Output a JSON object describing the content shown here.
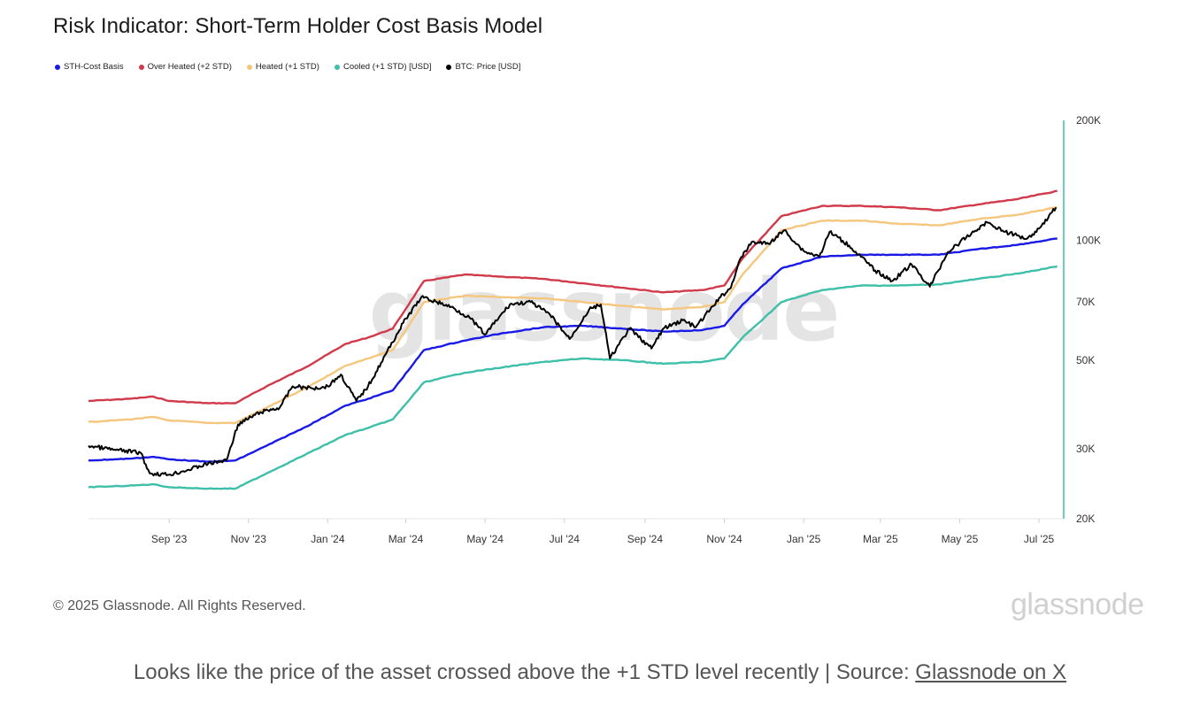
{
  "chart_data": {
    "type": "line",
    "title": "Risk Indicator: Short-Term Holder Cost Basis Model",
    "y_scale": "log",
    "ylim": [
      20000,
      200000
    ],
    "y_ticks": [
      {
        "value": 200000,
        "label": "200K"
      },
      {
        "value": 100000,
        "label": "100K"
      },
      {
        "value": 70000,
        "label": "70K"
      },
      {
        "value": 50000,
        "label": "50K"
      },
      {
        "value": 30000,
        "label": "30K"
      },
      {
        "value": 20000,
        "label": "20K"
      }
    ],
    "xlim": [
      "2023-07-01",
      "2025-07-20"
    ],
    "x_ticks": [
      {
        "date": "2023-09-01",
        "label": "Sep '23"
      },
      {
        "date": "2023-11-01",
        "label": "Nov '23"
      },
      {
        "date": "2024-01-01",
        "label": "Jan '24"
      },
      {
        "date": "2024-03-01",
        "label": "Mar '24"
      },
      {
        "date": "2024-05-01",
        "label": "May '24"
      },
      {
        "date": "2024-07-01",
        "label": "Jul '24"
      },
      {
        "date": "2024-09-01",
        "label": "Sep '24"
      },
      {
        "date": "2024-11-01",
        "label": "Nov '24"
      },
      {
        "date": "2025-01-01",
        "label": "Jan '25"
      },
      {
        "date": "2025-03-01",
        "label": "Mar '25"
      },
      {
        "date": "2025-05-01",
        "label": "May '25"
      },
      {
        "date": "2025-07-01",
        "label": "Jul '25"
      }
    ],
    "grid": false,
    "legend_position": "top-left",
    "watermark": "glassnode",
    "series": [
      {
        "name": "Over Heated (+2 STD)",
        "color": "#d03a4a",
        "x": [
          "2023-07-01",
          "2023-08-01",
          "2023-08-20",
          "2023-09-01",
          "2023-10-01",
          "2023-10-22",
          "2023-11-15",
          "2023-12-15",
          "2024-01-15",
          "2024-02-01",
          "2024-02-20",
          "2024-03-15",
          "2024-04-15",
          "2024-05-15",
          "2024-06-15",
          "2024-07-15",
          "2024-08-15",
          "2024-09-15",
          "2024-10-15",
          "2024-11-01",
          "2024-11-15",
          "2024-12-15",
          "2025-01-15",
          "2025-02-15",
          "2025-03-15",
          "2025-04-15",
          "2025-05-15",
          "2025-06-15",
          "2025-07-15"
        ],
        "y": [
          39500,
          40000,
          40500,
          39500,
          39000,
          39000,
          43000,
          48000,
          55000,
          57000,
          60000,
          79000,
          82000,
          81000,
          80000,
          78000,
          76000,
          74000,
          75000,
          77000,
          90000,
          115000,
          122000,
          122000,
          121000,
          119000,
          123000,
          127000,
          133000
        ]
      },
      {
        "name": "Heated (+1 STD)",
        "color": "#f5c77e",
        "x": [
          "2023-07-01",
          "2023-08-01",
          "2023-08-20",
          "2023-09-01",
          "2023-10-01",
          "2023-10-22",
          "2023-11-15",
          "2023-12-15",
          "2024-01-15",
          "2024-02-01",
          "2024-02-20",
          "2024-03-15",
          "2024-04-15",
          "2024-05-15",
          "2024-06-15",
          "2024-07-15",
          "2024-08-15",
          "2024-09-15",
          "2024-10-15",
          "2024-11-01",
          "2024-11-15",
          "2024-12-15",
          "2025-01-15",
          "2025-02-15",
          "2025-03-15",
          "2025-04-15",
          "2025-05-15",
          "2025-06-15",
          "2025-07-15"
        ],
        "y": [
          35000,
          35500,
          36000,
          35300,
          34800,
          34800,
          38000,
          42500,
          48500,
          50500,
          53000,
          70000,
          72500,
          72000,
          71500,
          70000,
          68500,
          67000,
          68000,
          70000,
          82000,
          106000,
          112000,
          112000,
          110000,
          109000,
          113000,
          116000,
          121000
        ]
      },
      {
        "name": "STH-Cost Basis",
        "color": "#1a1ae6",
        "x": [
          "2023-07-01",
          "2023-08-01",
          "2023-08-20",
          "2023-09-01",
          "2023-10-01",
          "2023-10-22",
          "2023-11-15",
          "2023-12-15",
          "2024-01-15",
          "2024-02-01",
          "2024-02-20",
          "2024-03-15",
          "2024-04-15",
          "2024-05-15",
          "2024-06-15",
          "2024-07-15",
          "2024-08-15",
          "2024-09-15",
          "2024-10-15",
          "2024-11-01",
          "2024-11-15",
          "2024-12-15",
          "2025-01-15",
          "2025-02-15",
          "2025-03-15",
          "2025-04-15",
          "2025-05-15",
          "2025-06-15",
          "2025-07-15"
        ],
        "y": [
          28000,
          28300,
          28600,
          28200,
          27800,
          28000,
          30500,
          34000,
          38500,
          40000,
          42000,
          53000,
          56000,
          58500,
          60500,
          61000,
          60000,
          59000,
          59500,
          61000,
          69000,
          85000,
          91000,
          92000,
          92000,
          92000,
          95000,
          97500,
          101000
        ]
      },
      {
        "name": "Cooled (+1 STD) [USD]",
        "color": "#3dbfa9",
        "x": [
          "2023-07-01",
          "2023-08-01",
          "2023-08-20",
          "2023-09-01",
          "2023-10-01",
          "2023-10-22",
          "2023-11-15",
          "2023-12-15",
          "2024-01-15",
          "2024-02-01",
          "2024-02-20",
          "2024-03-15",
          "2024-04-15",
          "2024-05-15",
          "2024-06-15",
          "2024-07-15",
          "2024-08-15",
          "2024-09-15",
          "2024-10-15",
          "2024-11-01",
          "2024-11-15",
          "2024-12-15",
          "2025-01-15",
          "2025-02-15",
          "2025-03-15",
          "2025-04-15",
          "2025-05-15",
          "2025-06-15",
          "2025-07-15"
        ],
        "y": [
          24000,
          24200,
          24400,
          24000,
          23800,
          23800,
          26000,
          29000,
          32500,
          33800,
          35500,
          44000,
          46500,
          48000,
          49500,
          50500,
          50000,
          49000,
          49500,
          50500,
          57000,
          70000,
          75000,
          77000,
          77000,
          77500,
          80000,
          82500,
          86000
        ]
      },
      {
        "name": "BTC: Price [USD]",
        "color": "#000000",
        "x": [
          "2023-07-01",
          "2023-07-20",
          "2023-08-10",
          "2023-08-17",
          "2023-09-01",
          "2023-09-15",
          "2023-10-01",
          "2023-10-15",
          "2023-10-24",
          "2023-11-10",
          "2023-11-25",
          "2023-12-05",
          "2023-12-20",
          "2024-01-01",
          "2024-01-11",
          "2024-01-23",
          "2024-02-01",
          "2024-02-15",
          "2024-02-28",
          "2024-03-13",
          "2024-03-25",
          "2024-04-05",
          "2024-04-19",
          "2024-05-01",
          "2024-05-20",
          "2024-06-05",
          "2024-06-20",
          "2024-07-05",
          "2024-07-20",
          "2024-07-29",
          "2024-08-05",
          "2024-08-20",
          "2024-09-06",
          "2024-09-15",
          "2024-09-30",
          "2024-10-10",
          "2024-10-29",
          "2024-11-06",
          "2024-11-12",
          "2024-11-22",
          "2024-12-05",
          "2024-12-17",
          "2025-01-01",
          "2025-01-13",
          "2025-01-21",
          "2025-02-05",
          "2025-02-25",
          "2025-03-10",
          "2025-03-25",
          "2025-04-08",
          "2025-04-22",
          "2025-05-10",
          "2025-05-22",
          "2025-06-05",
          "2025-06-22",
          "2025-07-01",
          "2025-07-14"
        ],
        "y": [
          30500,
          29800,
          29300,
          26000,
          25800,
          26500,
          27500,
          28000,
          34500,
          37000,
          38000,
          43000,
          42500,
          43000,
          46000,
          39500,
          43000,
          52000,
          62000,
          72000,
          70000,
          68000,
          64000,
          58000,
          69000,
          70000,
          65000,
          56500,
          67000,
          69000,
          50500,
          60000,
          53500,
          60000,
          63000,
          60500,
          72000,
          76000,
          88000,
          99000,
          98000,
          106000,
          94000,
          91000,
          105000,
          97000,
          84000,
          79000,
          87000,
          76500,
          93500,
          104000,
          111000,
          105000,
          101000,
          107000,
          121000
        ]
      }
    ]
  },
  "legend": [
    {
      "label": "STH-Cost Basis",
      "color": "#1a1ae6"
    },
    {
      "label": "Over Heated (+2 STD)",
      "color": "#d03a4a"
    },
    {
      "label": "Heated (+1 STD)",
      "color": "#f5c77e"
    },
    {
      "label": "Cooled (+1 STD) [USD]",
      "color": "#3dbfa9"
    },
    {
      "label": "BTC: Price [USD]",
      "color": "#000000"
    }
  ],
  "footer": {
    "copyright": "© 2025 Glassnode. All Rights Reserved.",
    "brand": "glassnode"
  },
  "caption": {
    "text": "Looks like the price of the asset crossed above the +1 STD level recently | Source: ",
    "link_text": "Glassnode on X"
  }
}
